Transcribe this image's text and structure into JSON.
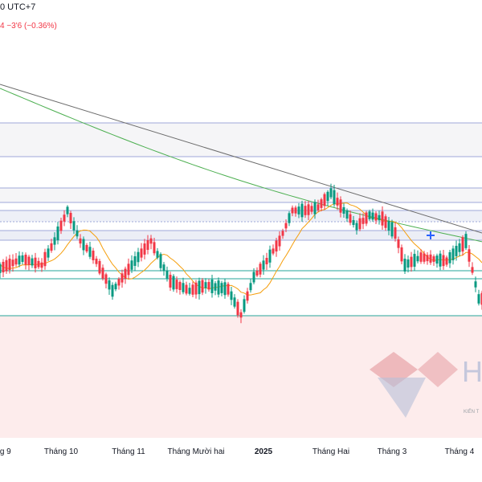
{
  "header": {
    "timezone": "0 UTC+7",
    "change": "4  −3'6 (−0.36%)"
  },
  "watermark": {
    "caption": "KIẾN T"
  },
  "chart_data": {
    "type": "candlestick",
    "title": "",
    "x_ticks": [
      {
        "label": "ng 9",
        "index": 2
      },
      {
        "label": "Tháng 10",
        "index": 20
      },
      {
        "label": "Tháng 11",
        "index": 41
      },
      {
        "label": "Tháng Mười hai",
        "index": 62
      },
      {
        "label": "2025",
        "index": 83
      },
      {
        "label": "Tháng Hai",
        "index": 104
      },
      {
        "label": "Tháng 3",
        "index": 123
      },
      {
        "label": "Tháng 4",
        "index": 144
      }
    ],
    "ylim": [
      0,
      600
    ],
    "candles": [],
    "moving_averages": [
      {
        "name": "",
        "color": "#f59e0b"
      },
      {
        "name": "",
        "color": "#4caf50"
      }
    ],
    "trendline": {
      "color": "#6b6b6b"
    },
    "horizontal_levels": [
      153,
      195,
      234,
      252,
      262,
      276,
      287,
      299,
      337,
      347,
      393
    ],
    "colors": {
      "up": "#089981",
      "down": "#f23645",
      "zone": "#fdecec",
      "level": "#9fa8da"
    }
  }
}
